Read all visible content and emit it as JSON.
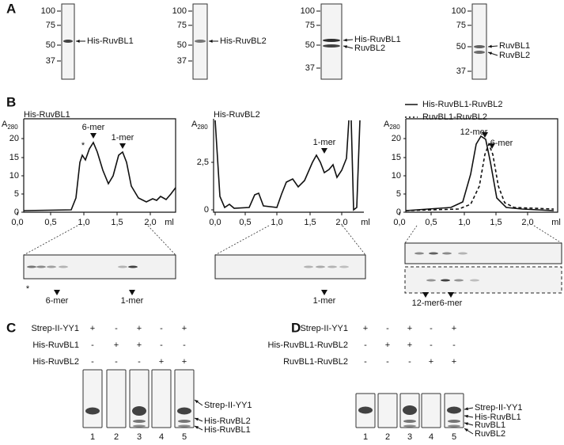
{
  "panel_a": {
    "label": "A",
    "gels": [
      {
        "markers": [
          "100",
          "75",
          "50",
          "37"
        ],
        "bands": [
          "His-RuvBL1"
        ]
      },
      {
        "markers": [
          "100",
          "75",
          "50",
          "37"
        ],
        "bands": [
          "His-RuvBL2"
        ]
      },
      {
        "markers": [
          "100",
          "75",
          "50",
          "37"
        ],
        "bands": [
          "His-RuvBL1",
          "RuvBL2"
        ]
      },
      {
        "markers": [
          "100",
          "75",
          "50",
          "37"
        ],
        "bands": [
          "RuvBL1",
          "RuvBL2"
        ]
      }
    ]
  },
  "panel_b": {
    "label": "B",
    "plots": [
      {
        "title": "His-RuvBL1",
        "y_axis": "A",
        "y_sub": "280",
        "yticks": [
          "20",
          "15",
          "10",
          "5",
          "0"
        ],
        "xticks": [
          "0,0",
          "0,5",
          "1,0",
          "1,5",
          "2,0"
        ],
        "x_unit": "ml",
        "peaks": [
          "*",
          "6-mer",
          "1-mer"
        ],
        "gel_labels": [
          "*",
          "6-mer",
          "1-mer"
        ]
      },
      {
        "title": "His-RuvBL2",
        "y_axis": "A",
        "y_sub": "280",
        "yticks": [
          "2,5",
          "0"
        ],
        "xticks": [
          "0,0",
          "0,5",
          "1,0",
          "1,5",
          "2,0"
        ],
        "x_unit": "ml",
        "peaks": [
          "1-mer"
        ],
        "gel_labels": [
          "1-mer"
        ]
      },
      {
        "legend": [
          "His-RuvBL1-RuvBL2",
          "RuvBL1-RuvBL2"
        ],
        "y_axis": "A",
        "y_sub": "280",
        "yticks": [
          "20",
          "15",
          "10",
          "5",
          "0"
        ],
        "xticks": [
          "0,0",
          "0,5",
          "1,0",
          "1,5",
          "2,0"
        ],
        "x_unit": "ml",
        "peaks": [
          "12-mer",
          "6-mer"
        ],
        "gel_labels": [
          "12-mer",
          "6-mer"
        ]
      }
    ]
  },
  "panel_c": {
    "label": "C",
    "rows": [
      [
        "Strep-II-YY1",
        "+",
        "-",
        "+",
        "-",
        "+"
      ],
      [
        "His-RuvBL1",
        "-",
        "+",
        "+",
        "-",
        "-"
      ],
      [
        "His-RuvBL2",
        "-",
        "-",
        "-",
        "+",
        "+"
      ]
    ],
    "lanes": [
      "1",
      "2",
      "3",
      "4",
      "5"
    ],
    "bands": [
      "Strep-II-YY1",
      "His-RuvBL2",
      "His-RuvBL1"
    ]
  },
  "panel_d": {
    "label": "D",
    "rows": [
      [
        "Strep-II-YY1",
        "+",
        "-",
        "+",
        "-",
        "+"
      ],
      [
        "His-RuvBL1-RuvBL2",
        "-",
        "+",
        "+",
        "-",
        "-"
      ],
      [
        "RuvBL1-RuvBL2",
        "-",
        "-",
        "-",
        "+",
        "+"
      ]
    ],
    "lanes": [
      "1",
      "2",
      "3",
      "4",
      "5"
    ],
    "bands": [
      "Strep-II-YY1",
      "His-RuvBL1",
      "RuvBL1",
      "RuvBL2"
    ]
  }
}
